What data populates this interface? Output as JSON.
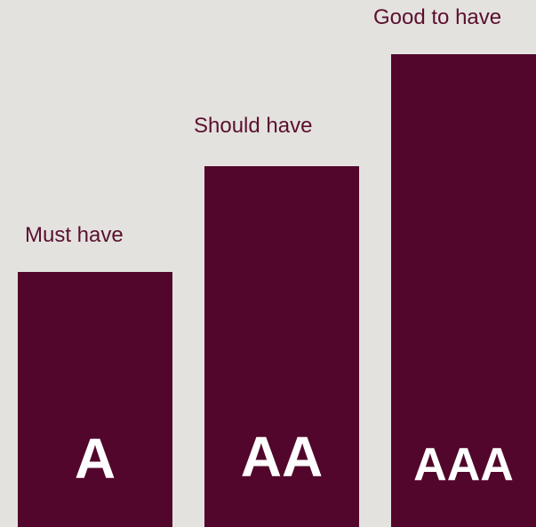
{
  "colors": {
    "background": "#e4e2de",
    "bar": "#52062b",
    "caption": "#5a1030",
    "level_text": "#ffffff"
  },
  "tiers": [
    {
      "caption": "Must have",
      "level": "A"
    },
    {
      "caption": "Should have",
      "level": "AA"
    },
    {
      "caption": "Good to have",
      "level": "AAA"
    }
  ]
}
